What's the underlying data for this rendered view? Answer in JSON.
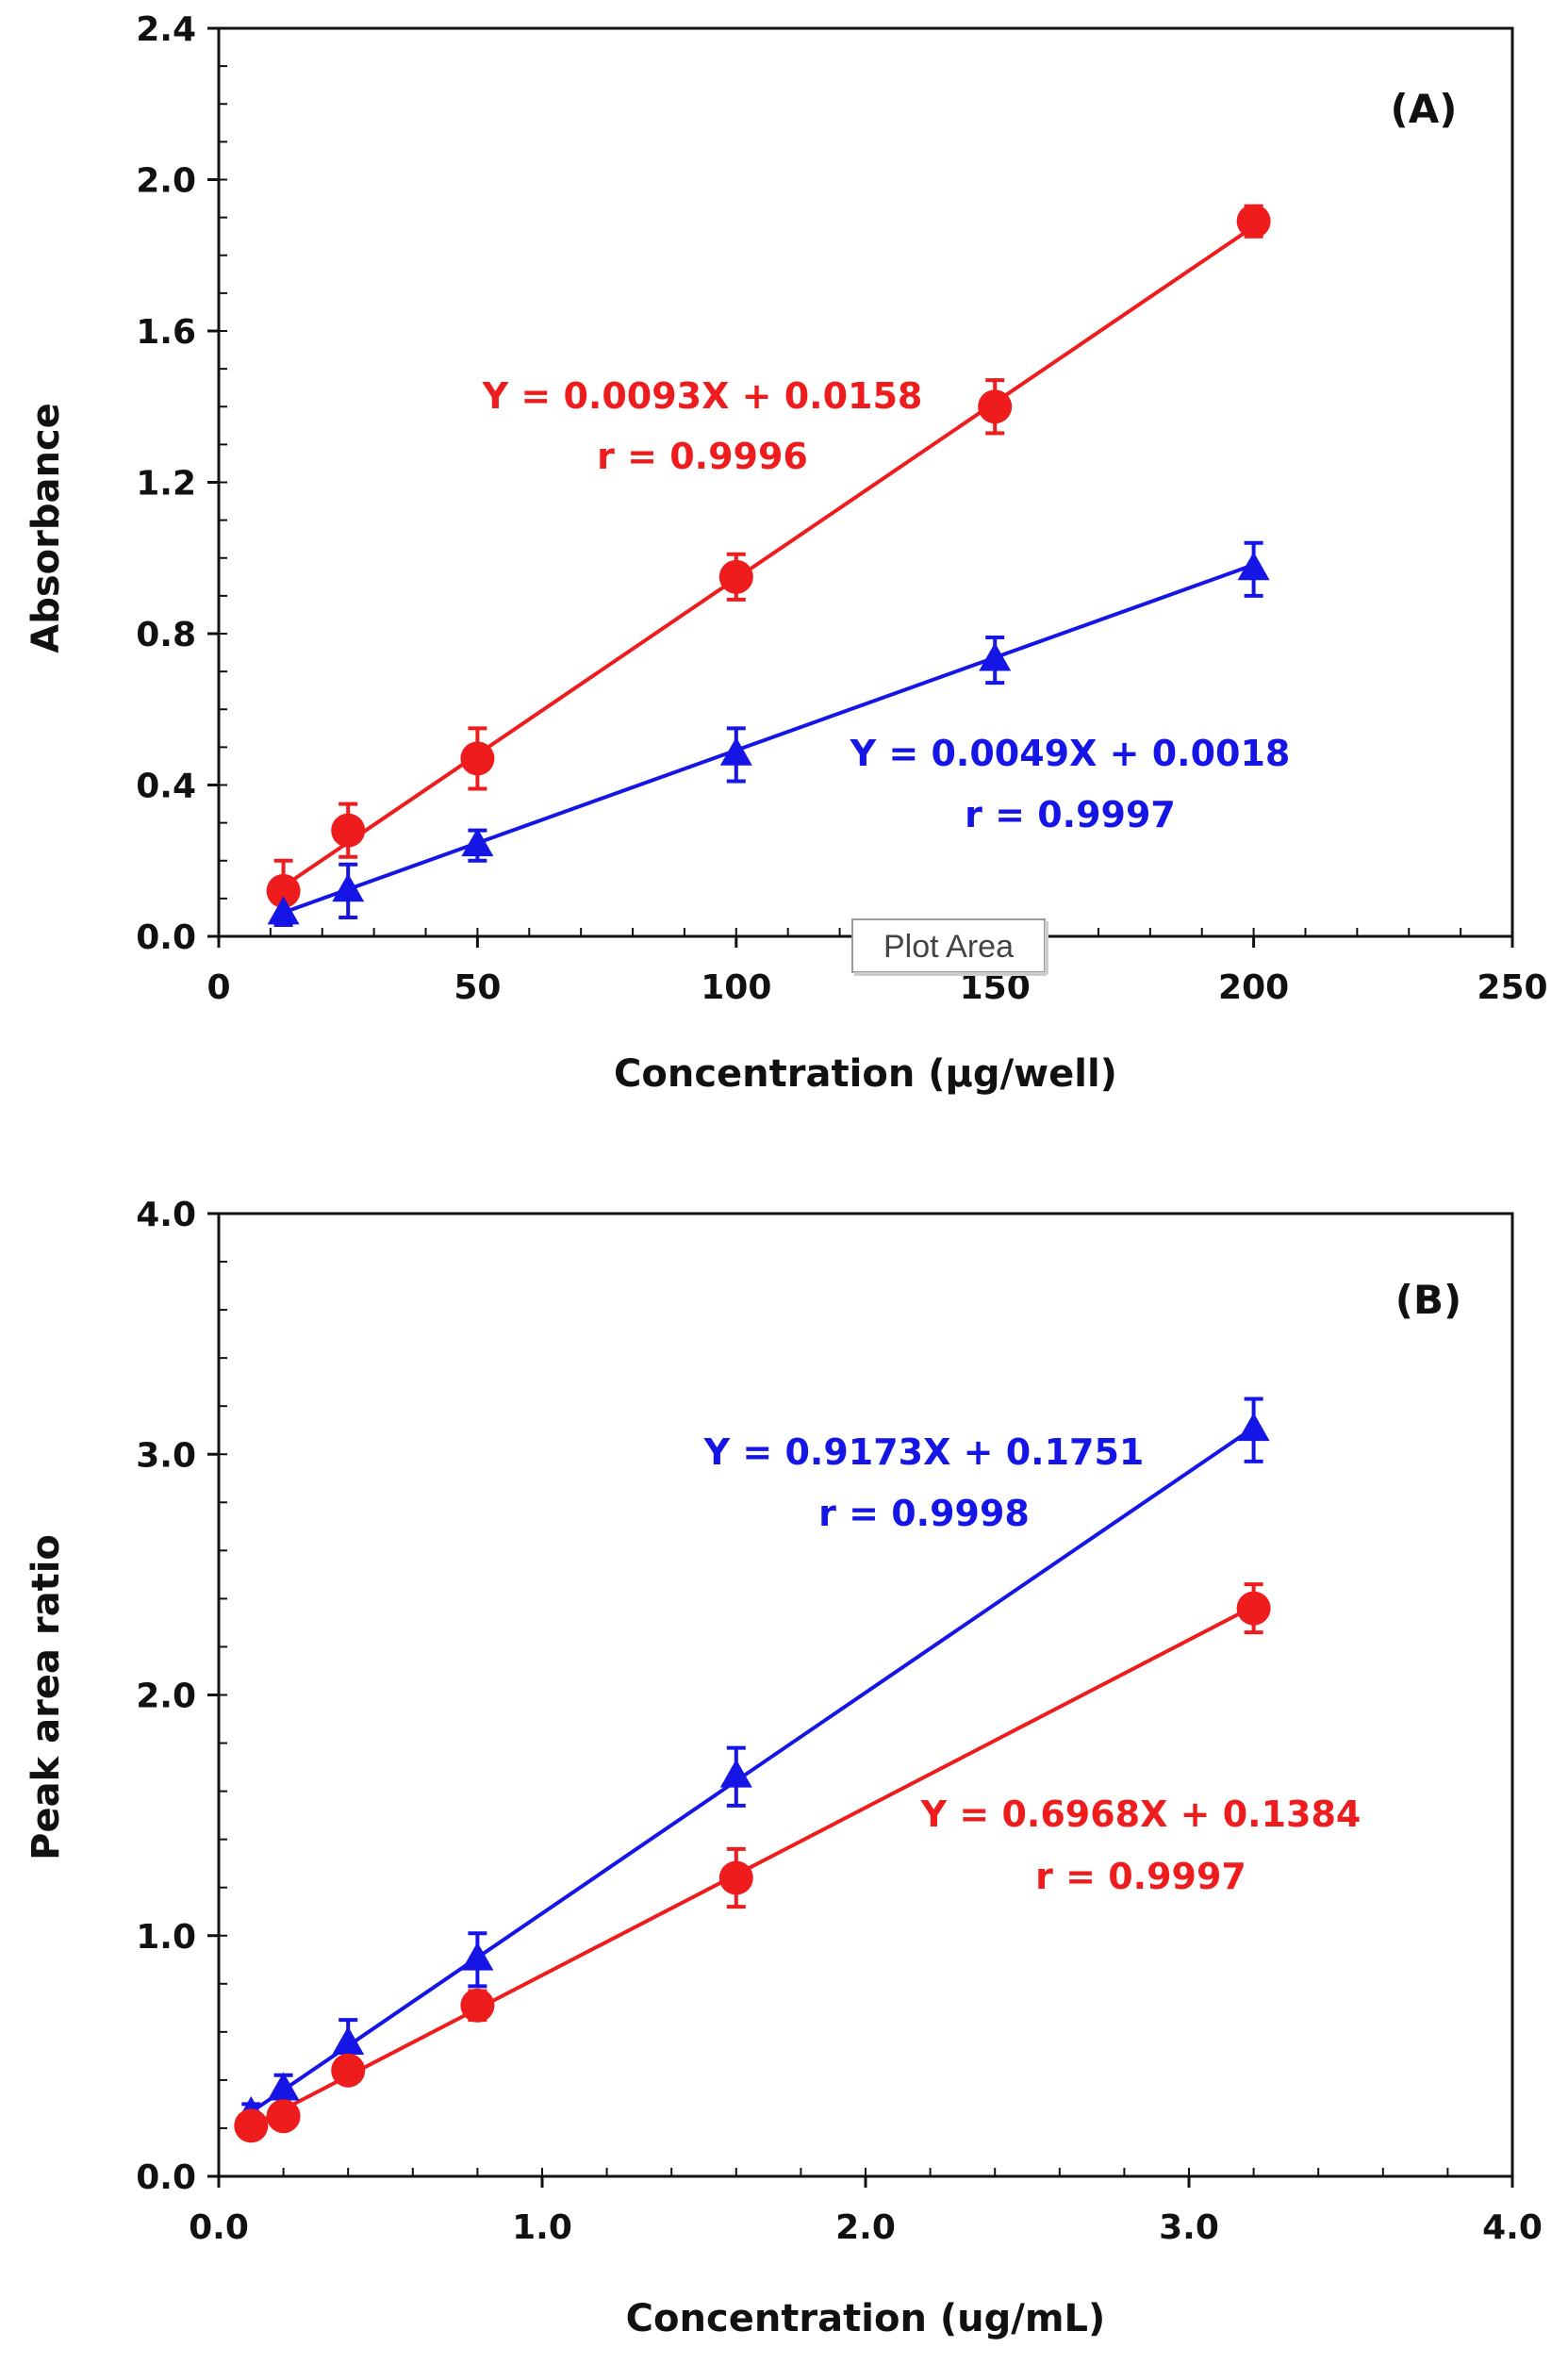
{
  "colors": {
    "red": "#ee1c1c",
    "blue": "#1515e6",
    "axis": "#111111"
  },
  "chart_data": [
    {
      "panel": "(A)",
      "type": "scatter",
      "xlabel": "Concentration (µg/well)",
      "ylabel": "Absorbance",
      "xlim": [
        0,
        250
      ],
      "ylim": [
        0,
        2.4
      ],
      "x_ticks": [
        0,
        50,
        100,
        150,
        200,
        250
      ],
      "x_tick_labels": [
        "0",
        "50",
        "100",
        "150",
        "200",
        "250"
      ],
      "y_ticks": [
        0,
        0.4,
        0.8,
        1.2,
        1.6,
        2.0,
        2.4
      ],
      "y_tick_labels": [
        "0.0",
        "0.4",
        "0.8",
        "1.2",
        "1.6",
        "2.0",
        "2.4"
      ],
      "x_minor_step": 10,
      "y_minor_step": 0.1,
      "series": [
        {
          "name": "red",
          "color": "red",
          "marker": "circle",
          "x": [
            12.5,
            25,
            50,
            100,
            150,
            200
          ],
          "y": [
            0.12,
            0.28,
            0.47,
            0.95,
            1.4,
            1.89
          ],
          "err": [
            0.08,
            0.07,
            0.08,
            0.06,
            0.07,
            0.04
          ],
          "fit": {
            "slope": 0.0093,
            "intercept": 0.0158
          },
          "equation": "Y = 0.0093X + 0.0158",
          "r": "r = 0.9996"
        },
        {
          "name": "blue",
          "color": "blue",
          "marker": "triangle",
          "x": [
            12.5,
            25,
            50,
            100,
            150,
            200
          ],
          "y": [
            0.06,
            0.12,
            0.24,
            0.48,
            0.73,
            0.97
          ],
          "err": [
            0.03,
            0.07,
            0.04,
            0.07,
            0.06,
            0.07
          ],
          "fit": {
            "slope": 0.0049,
            "intercept": 0.0018
          },
          "equation": "Y = 0.0049X + 0.0018",
          "r": "r = 0.9997"
        }
      ],
      "tooltip": "Plot Area"
    },
    {
      "panel": "(B)",
      "type": "scatter",
      "xlabel": "Concentration (ug/mL)",
      "ylabel": "Peak area ratio",
      "xlim": [
        0,
        4.0
      ],
      "ylim": [
        0,
        4.0
      ],
      "x_ticks": [
        0,
        1.0,
        2.0,
        3.0,
        4.0
      ],
      "x_tick_labels": [
        "0.0",
        "1.0",
        "2.0",
        "3.0",
        "4.0"
      ],
      "y_ticks": [
        0,
        1.0,
        2.0,
        3.0,
        4.0
      ],
      "y_tick_labels": [
        "0.0",
        "1.0",
        "2.0",
        "3.0",
        "4.0"
      ],
      "x_minor_step": 0.2,
      "y_minor_step": 0.2,
      "series": [
        {
          "name": "blue",
          "color": "blue",
          "marker": "triangle",
          "x": [
            0.1,
            0.2,
            0.4,
            0.8,
            1.6,
            3.2
          ],
          "y": [
            0.26,
            0.36,
            0.55,
            0.9,
            1.66,
            3.1
          ],
          "err": [
            0.04,
            0.06,
            0.1,
            0.11,
            0.12,
            0.13
          ],
          "fit": {
            "slope": 0.9173,
            "intercept": 0.1751
          },
          "equation": "Y = 0.9173X + 0.1751",
          "r": "r = 0.9998"
        },
        {
          "name": "red",
          "color": "red",
          "marker": "circle",
          "x": [
            0.1,
            0.2,
            0.4,
            0.8,
            1.6,
            3.2
          ],
          "y": [
            0.21,
            0.25,
            0.44,
            0.71,
            1.24,
            2.36
          ],
          "err": [
            0.03,
            0.03,
            0.04,
            0.06,
            0.12,
            0.1
          ],
          "fit": {
            "slope": 0.6968,
            "intercept": 0.1384
          },
          "equation": "Y = 0.6968X + 0.1384",
          "r": "r = 0.9997"
        }
      ]
    }
  ]
}
